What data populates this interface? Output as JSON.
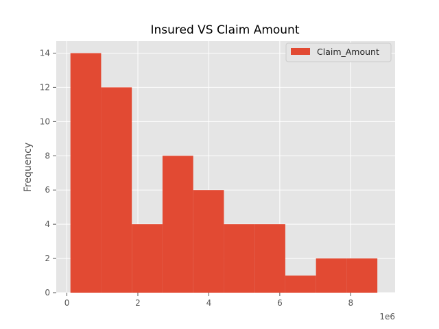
{
  "chart_data": {
    "type": "bar",
    "title": "Insured VS Claim Amount",
    "xlabel": "",
    "ylabel": "Frequency",
    "x_offset_label": "1e6",
    "xlim": [
      -0.3,
      9.25
    ],
    "ylim": [
      0,
      14.7
    ],
    "x_ticks": [
      0,
      2,
      4,
      6,
      8
    ],
    "y_ticks": [
      0,
      2,
      4,
      6,
      8,
      10,
      12,
      14
    ],
    "grid": true,
    "legend_position": "top-right",
    "series": [
      {
        "name": "Claim_Amount",
        "color": "#E24A33",
        "bins": [
          {
            "start": 0.1,
            "end": 0.965,
            "count": 14
          },
          {
            "start": 0.965,
            "end": 1.83,
            "count": 12
          },
          {
            "start": 1.83,
            "end": 2.695,
            "count": 4
          },
          {
            "start": 2.695,
            "end": 3.56,
            "count": 8
          },
          {
            "start": 3.56,
            "end": 4.425,
            "count": 6
          },
          {
            "start": 4.425,
            "end": 5.29,
            "count": 4
          },
          {
            "start": 5.29,
            "end": 6.155,
            "count": 4
          },
          {
            "start": 6.155,
            "end": 7.02,
            "count": 1
          },
          {
            "start": 7.02,
            "end": 7.885,
            "count": 2
          },
          {
            "start": 7.885,
            "end": 8.75,
            "count": 2
          }
        ]
      }
    ]
  },
  "style": {
    "plot_background": "#E5E5E5",
    "grid_color": "#FFFFFF",
    "tick_color": "#555555"
  }
}
